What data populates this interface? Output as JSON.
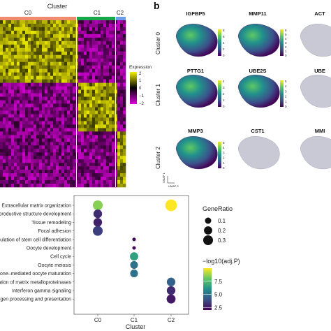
{
  "panel_b_letter": "b",
  "heatmap": {
    "cluster_title": "Cluster",
    "clusters": [
      {
        "name": "C0",
        "color": "#f08b6e"
      },
      {
        "name": "C1",
        "color": "#18a84a"
      },
      {
        "name": "C2",
        "color": "#6b9ee8"
      }
    ],
    "legend_title": "Expression",
    "legend_ticks": [
      "2",
      "1",
      "0",
      "−1",
      "−2"
    ],
    "colors": {
      "low": "#e000e0",
      "mid": "#000000",
      "high": "#f5f200"
    }
  },
  "umap": {
    "row_labels": [
      "Cluster 0",
      "Cluster 1",
      "Cluster 2"
    ],
    "genes": [
      [
        "IGFBP5",
        "MMP11",
        "ACT"
      ],
      [
        "PTTG1",
        "UBE2S",
        "UBE"
      ],
      [
        "MMP3",
        "CST1",
        "MMI"
      ]
    ],
    "colorbar_ticks": [
      [
        "8",
        "6",
        "4",
        "2",
        "0"
      ],
      [
        "6",
        "5",
        "4",
        "3",
        "2",
        "1",
        "0"
      ],
      [],
      [
        "4",
        "3",
        "2",
        "1",
        "0"
      ],
      [
        "5",
        "4",
        "3",
        "2",
        "1",
        "0"
      ],
      [],
      [
        "5",
        "4",
        "3",
        "2",
        "1",
        "0"
      ],
      [],
      []
    ],
    "axis_x": "UMAP 2",
    "axis_y": "UMAP 1"
  },
  "chart_data": {
    "type": "scatter",
    "xlabel": "Cluster",
    "categories": [
      "C0",
      "C1",
      "C2"
    ],
    "terms": [
      "Extracellular matrix organization",
      "productive structure development",
      "Tissue remodeling",
      "Focal adhesion",
      "pulation of stem cell differentiation",
      "Oocyte development",
      "Cell cycle",
      "Oocyte meiosis",
      "one–mediated oocyte maturation",
      "ation of matrix metalloproteinases",
      "Interferon gamma signaling",
      "gen processing and presentation"
    ],
    "points": [
      {
        "cluster": "C0",
        "term": "Extracellular matrix organization",
        "gene_ratio": 0.3,
        "neg_log10_padj": 8.5
      },
      {
        "cluster": "C2",
        "term": "Extracellular matrix organization",
        "gene_ratio": 0.45,
        "neg_log10_padj": 10.0
      },
      {
        "cluster": "C0",
        "term": "productive structure development",
        "gene_ratio": 0.22,
        "neg_log10_padj": 3.0
      },
      {
        "cluster": "C0",
        "term": "Tissue remodeling",
        "gene_ratio": 0.22,
        "neg_log10_padj": 2.8
      },
      {
        "cluster": "C0",
        "term": "Focal adhesion",
        "gene_ratio": 0.3,
        "neg_log10_padj": 3.5
      },
      {
        "cluster": "C1",
        "term": "pulation of stem cell differentiation",
        "gene_ratio": 0.02,
        "neg_log10_padj": 2.2
      },
      {
        "cluster": "C1",
        "term": "Oocyte development",
        "gene_ratio": 0.02,
        "neg_log10_padj": 2.2
      },
      {
        "cluster": "C1",
        "term": "Cell cycle",
        "gene_ratio": 0.2,
        "neg_log10_padj": 6.5
      },
      {
        "cluster": "C1",
        "term": "Oocyte meiosis",
        "gene_ratio": 0.17,
        "neg_log10_padj": 5.0
      },
      {
        "cluster": "C1",
        "term": "one–mediated oocyte maturation",
        "gene_ratio": 0.17,
        "neg_log10_padj": 5.0
      },
      {
        "cluster": "C2",
        "term": "ation of matrix metalloproteinases",
        "gene_ratio": 0.22,
        "neg_log10_padj": 4.5
      },
      {
        "cluster": "C2",
        "term": "Interferon gamma signaling",
        "gene_ratio": 0.22,
        "neg_log10_padj": 3.0
      },
      {
        "cluster": "C2",
        "term": "gen processing and presentation",
        "gene_ratio": 0.24,
        "neg_log10_padj": 2.6
      }
    ],
    "size_legend": {
      "title": "GeneRatio",
      "values": [
        0.1,
        0.2,
        0.3
      ],
      "labels": [
        "0.1",
        "0.2",
        "0.3"
      ]
    },
    "color_legend": {
      "title": "−log10(adj.P)",
      "ticks": [
        2.5,
        5.0,
        7.5
      ],
      "labels": [
        "2.5",
        "5.0",
        "7.5"
      ],
      "range": [
        2.0,
        10.0
      ]
    },
    "grid": false
  }
}
